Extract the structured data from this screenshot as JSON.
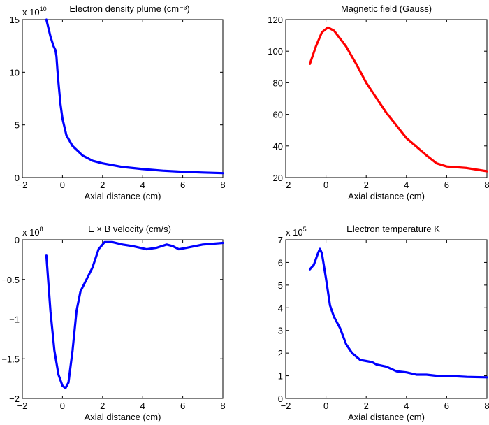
{
  "chart_data": [
    {
      "type": "line",
      "title": "Electron density plume (cm⁻³)",
      "multiplier": {
        "base": "x 10",
        "exponent": "10"
      },
      "xlabel": "Axial distance (cm)",
      "ylabel": "",
      "xlim": [
        -2,
        8
      ],
      "ylim": [
        0,
        15
      ],
      "xticks": [
        -2,
        0,
        2,
        4,
        6,
        8
      ],
      "yticks": [
        0,
        5,
        10,
        15
      ],
      "grid": false,
      "color": "#0000ff",
      "x": [
        -0.8,
        -0.6,
        -0.45,
        -0.35,
        -0.3,
        -0.25,
        -0.2,
        -0.1,
        0,
        0.2,
        0.5,
        1,
        1.5,
        2,
        3,
        4,
        5,
        6,
        7,
        8
      ],
      "y": [
        15,
        13.4,
        12.5,
        12.1,
        11.5,
        10.2,
        9,
        7,
        5.6,
        4,
        3,
        2.1,
        1.6,
        1.35,
        1.0,
        0.8,
        0.65,
        0.55,
        0.48,
        0.42
      ]
    },
    {
      "type": "line",
      "title": "Magnetic field (Gauss)",
      "xlabel": "Axial distance (cm)",
      "ylabel": "",
      "xlim": [
        -2,
        8
      ],
      "ylim": [
        20,
        120
      ],
      "xticks": [
        -2,
        0,
        2,
        4,
        6,
        8
      ],
      "yticks": [
        20,
        40,
        60,
        80,
        100,
        120
      ],
      "grid": false,
      "color": "#ff0000",
      "x": [
        -0.8,
        -0.5,
        -0.2,
        0.1,
        0.4,
        1,
        1.5,
        2,
        3,
        4,
        5,
        5.5,
        6,
        7,
        8
      ],
      "y": [
        92,
        103,
        112,
        115,
        113,
        103,
        92,
        80,
        61,
        45,
        34,
        29,
        27,
        26,
        24
      ]
    },
    {
      "type": "line",
      "title": "E × B velocity (cm/s)",
      "multiplier": {
        "base": "x 10",
        "exponent": "8"
      },
      "xlabel": "Axial distance (cm)",
      "ylabel": "",
      "xlim": [
        -2,
        8
      ],
      "ylim": [
        -2,
        0
      ],
      "xticks": [
        -2,
        0,
        2,
        4,
        6,
        8
      ],
      "yticks": [
        -2,
        -1.5,
        -1,
        -0.5,
        0
      ],
      "grid": false,
      "color": "#0000ff",
      "x": [
        -0.8,
        -0.6,
        -0.4,
        -0.2,
        0,
        0.15,
        0.3,
        0.5,
        0.7,
        0.9,
        1.2,
        1.5,
        1.8,
        2.1,
        2.5,
        3,
        3.5,
        4.2,
        4.7,
        5.2,
        5.5,
        5.8,
        6.2,
        7,
        8
      ],
      "y": [
        -0.2,
        -0.9,
        -1.4,
        -1.7,
        -1.84,
        -1.87,
        -1.8,
        -1.4,
        -0.9,
        -0.65,
        -0.5,
        -0.35,
        -0.12,
        -0.03,
        -0.03,
        -0.06,
        -0.08,
        -0.12,
        -0.1,
        -0.06,
        -0.08,
        -0.12,
        -0.1,
        -0.06,
        -0.04
      ]
    },
    {
      "type": "line",
      "title": "Electron temperature K",
      "multiplier": {
        "base": "x 10",
        "exponent": "5"
      },
      "xlabel": "Axial distance (cm)",
      "ylabel": "",
      "xlim": [
        -2,
        8
      ],
      "ylim": [
        0,
        7
      ],
      "xticks": [
        -2,
        0,
        2,
        4,
        6,
        8
      ],
      "yticks": [
        0,
        1,
        2,
        3,
        4,
        5,
        6,
        7
      ],
      "grid": false,
      "color": "#0000ff",
      "x": [
        -0.8,
        -0.6,
        -0.4,
        -0.3,
        -0.2,
        0,
        0.2,
        0.4,
        0.7,
        1,
        1.3,
        1.7,
        2,
        2.3,
        2.5,
        3,
        3.5,
        4,
        4.5,
        5,
        5.5,
        6,
        7,
        8
      ],
      "y": [
        5.7,
        5.9,
        6.4,
        6.6,
        6.4,
        5.3,
        4.1,
        3.6,
        3.1,
        2.4,
        2.0,
        1.7,
        1.65,
        1.6,
        1.5,
        1.4,
        1.2,
        1.15,
        1.05,
        1.05,
        1.0,
        1.0,
        0.95,
        0.93
      ]
    }
  ]
}
